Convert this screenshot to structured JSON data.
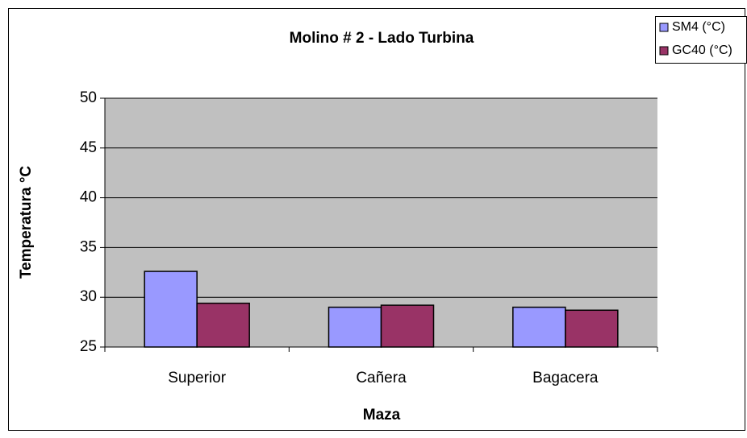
{
  "chart_data": {
    "type": "bar",
    "title": "Molino # 2  -  Lado Turbina",
    "x_label": "Maza",
    "y_label": "Temperatura °C",
    "categories": [
      "Superior",
      "Cañera",
      "Bagacera"
    ],
    "series": [
      {
        "name": "SM4 (°C)",
        "color": "#9999ff",
        "values": [
          32.6,
          29.0,
          29.0
        ]
      },
      {
        "name": "GC40 (°C)",
        "color": "#993366",
        "values": [
          29.4,
          29.2,
          28.7
        ]
      }
    ],
    "ylim": [
      25,
      50
    ],
    "yticks": [
      25,
      30,
      35,
      40,
      45,
      50
    ],
    "grid": true,
    "legend": "upper right"
  }
}
